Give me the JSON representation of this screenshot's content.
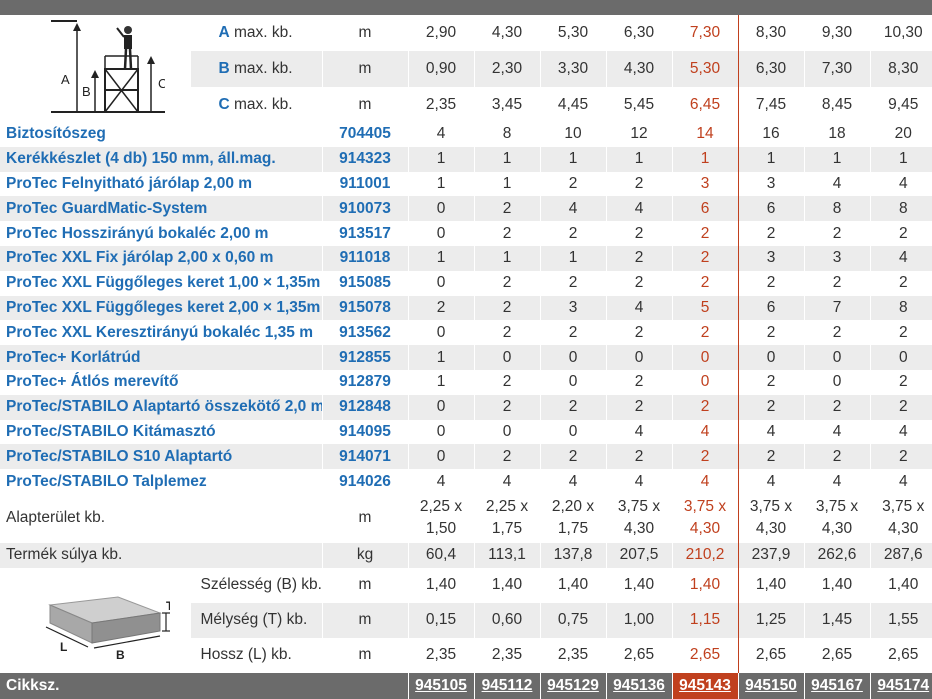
{
  "height_rows": [
    {
      "letter": "A",
      "label": " max. kb.",
      "unit": "m",
      "values": [
        "2,90",
        "4,30",
        "5,30",
        "6,30",
        "7,30",
        "8,30",
        "9,30",
        "10,30"
      ]
    },
    {
      "letter": "B",
      "label": " max. kb.",
      "unit": "m",
      "values": [
        "0,90",
        "2,30",
        "3,30",
        "4,30",
        "5,30",
        "6,30",
        "7,30",
        "8,30"
      ]
    },
    {
      "letter": "C",
      "label": " max. kb.",
      "unit": "m",
      "values": [
        "2,35",
        "3,45",
        "4,45",
        "5,45",
        "6,45",
        "7,45",
        "8,45",
        "9,45"
      ]
    }
  ],
  "scaffold_icon": {
    "letters": [
      "A",
      "B",
      "C"
    ]
  },
  "components": [
    {
      "name": "Biztosítószeg",
      "code": "704405",
      "values": [
        "4",
        "8",
        "10",
        "12",
        "14",
        "16",
        "18",
        "20"
      ]
    },
    {
      "name": "Kerékkészlet (4 db) 150 mm, áll.mag.",
      "code": "914323",
      "values": [
        "1",
        "1",
        "1",
        "1",
        "1",
        "1",
        "1",
        "1"
      ]
    },
    {
      "name": "ProTec Felnyitható járólap 2,00 m",
      "code": "911001",
      "values": [
        "1",
        "1",
        "2",
        "2",
        "3",
        "3",
        "4",
        "4"
      ]
    },
    {
      "name": "ProTec GuardMatic-System",
      "code": "910073",
      "values": [
        "0",
        "2",
        "4",
        "4",
        "6",
        "6",
        "8",
        "8"
      ]
    },
    {
      "name": "ProTec Hosszirányú bokaléc 2,00 m",
      "code": "913517",
      "values": [
        "0",
        "2",
        "2",
        "2",
        "2",
        "2",
        "2",
        "2"
      ]
    },
    {
      "name": "ProTec XXL Fix járólap 2,00 x 0,60 m",
      "code": "911018",
      "values": [
        "1",
        "1",
        "1",
        "2",
        "2",
        "3",
        "3",
        "4"
      ]
    },
    {
      "name": "ProTec XXL Függőleges keret 1,00 × 1,35m",
      "code": "915085",
      "values": [
        "0",
        "2",
        "2",
        "2",
        "2",
        "2",
        "2",
        "2"
      ]
    },
    {
      "name": "ProTec XXL Függőleges keret 2,00 × 1,35m",
      "code": "915078",
      "values": [
        "2",
        "2",
        "3",
        "4",
        "5",
        "6",
        "7",
        "8"
      ]
    },
    {
      "name": "ProTec XXL Keresztirányú bokaléc 1,35 m",
      "code": "913562",
      "values": [
        "0",
        "2",
        "2",
        "2",
        "2",
        "2",
        "2",
        "2"
      ]
    },
    {
      "name": "ProTec+ Korlátrúd",
      "code": "912855",
      "values": [
        "1",
        "0",
        "0",
        "0",
        "0",
        "0",
        "0",
        "0"
      ]
    },
    {
      "name": "ProTec+ Átlós merevítő",
      "code": "912879",
      "values": [
        "1",
        "2",
        "0",
        "2",
        "0",
        "2",
        "0",
        "2"
      ]
    },
    {
      "name": "ProTec/STABILO Alaptartó összekötő 2,0 m",
      "code": "912848",
      "values": [
        "0",
        "2",
        "2",
        "2",
        "2",
        "2",
        "2",
        "2"
      ]
    },
    {
      "name": "ProTec/STABILO Kitámasztó",
      "code": "914095",
      "values": [
        "0",
        "0",
        "0",
        "4",
        "4",
        "4",
        "4",
        "4"
      ]
    },
    {
      "name": "ProTec/STABILO S10 Alaptartó",
      "code": "914071",
      "values": [
        "0",
        "2",
        "2",
        "2",
        "2",
        "2",
        "2",
        "2"
      ]
    },
    {
      "name": "ProTec/STABILO Talplemez",
      "code": "914026",
      "values": [
        "4",
        "4",
        "4",
        "4",
        "4",
        "4",
        "4",
        "4"
      ]
    }
  ],
  "footprint": {
    "label": "Alapterület kb.",
    "unit": "m",
    "values": [
      [
        "2,25 x",
        "1,50"
      ],
      [
        "2,25 x",
        "1,75"
      ],
      [
        "2,20 x",
        "1,75"
      ],
      [
        "3,75 x",
        "4,30"
      ],
      [
        "3,75 x",
        "4,30"
      ],
      [
        "3,75 x",
        "4,30"
      ],
      [
        "3,75 x",
        "4,30"
      ],
      [
        "3,75 x",
        "4,30"
      ]
    ]
  },
  "weight": {
    "label": "Termék súlya kb.",
    "unit": "kg",
    "values": [
      "60,4",
      "113,1",
      "137,8",
      "207,5",
      "210,2",
      "237,9",
      "262,6",
      "287,6"
    ]
  },
  "package_icon": {
    "letters": [
      "T",
      "L",
      "B"
    ]
  },
  "dimensions": [
    {
      "label": "Szélesség (B) kb.",
      "unit": "m",
      "values": [
        "1,40",
        "1,40",
        "1,40",
        "1,40",
        "1,40",
        "1,40",
        "1,40",
        "1,40"
      ]
    },
    {
      "label": "Mélység (T) kb.",
      "unit": "m",
      "values": [
        "0,15",
        "0,60",
        "0,75",
        "1,00",
        "1,15",
        "1,25",
        "1,45",
        "1,55"
      ]
    },
    {
      "label": "Hossz (L) kb.",
      "unit": "m",
      "values": [
        "2,35",
        "2,35",
        "2,35",
        "2,65",
        "2,65",
        "2,65",
        "2,65",
        "2,65"
      ]
    }
  ],
  "footer": {
    "label": "Cikksz.",
    "codes": [
      "945105",
      "945112",
      "945129",
      "945136",
      "945143",
      "945150",
      "945167",
      "945174"
    ]
  },
  "highlight_column_index": 4,
  "colors": {
    "accent": "#c0401e",
    "link": "#1f6db4",
    "header_bar": "#6b6b6b",
    "stripe": "#ececec"
  }
}
